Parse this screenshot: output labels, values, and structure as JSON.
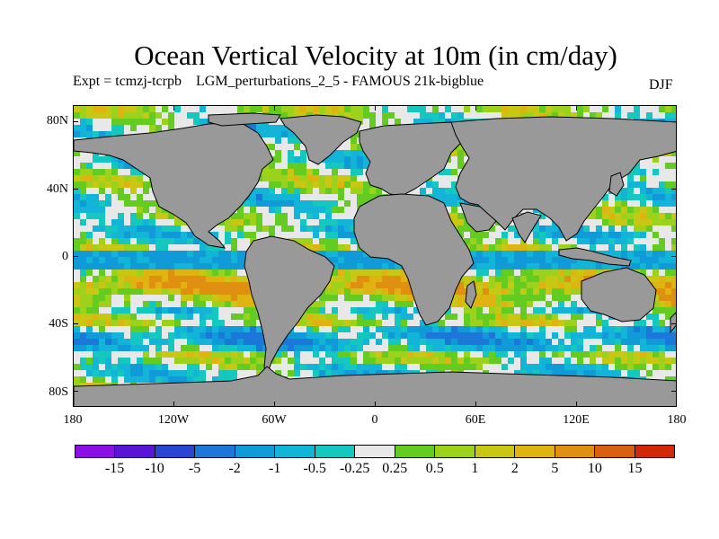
{
  "title": "Ocean Vertical Velocity at 10m (in cm/day)",
  "subtitle": "Expt = tcmzj-tcrpb    LGM_perturbations_2_5 - FAMOUS 21k-bigblue",
  "season": "DJF",
  "y_axis": {
    "labels": [
      "80N",
      "40N",
      "0",
      "40S",
      "80S"
    ]
  },
  "x_axis": {
    "labels": [
      "180",
      "120W",
      "60W",
      "0",
      "60E",
      "120E",
      "180"
    ]
  },
  "colorbar": {
    "labels": [
      "-15",
      "-10",
      "-5",
      "-2",
      "-1",
      "-0.5",
      "-0.25",
      "0.25",
      "0.5",
      "1",
      "2",
      "5",
      "10",
      "15"
    ],
    "colors": [
      "#8a10e6",
      "#5a14d6",
      "#2a46d0",
      "#1c78d8",
      "#109ad8",
      "#12b4d8",
      "#14c8c0",
      "#e8e8e8",
      "#64cc20",
      "#9cd21c",
      "#c8c814",
      "#e0b410",
      "#e09010",
      "#d86010",
      "#d02808"
    ]
  },
  "map": {
    "land_color": "#999999",
    "coast_color": "#000000",
    "ocean_background": "#e8e8e8"
  }
}
